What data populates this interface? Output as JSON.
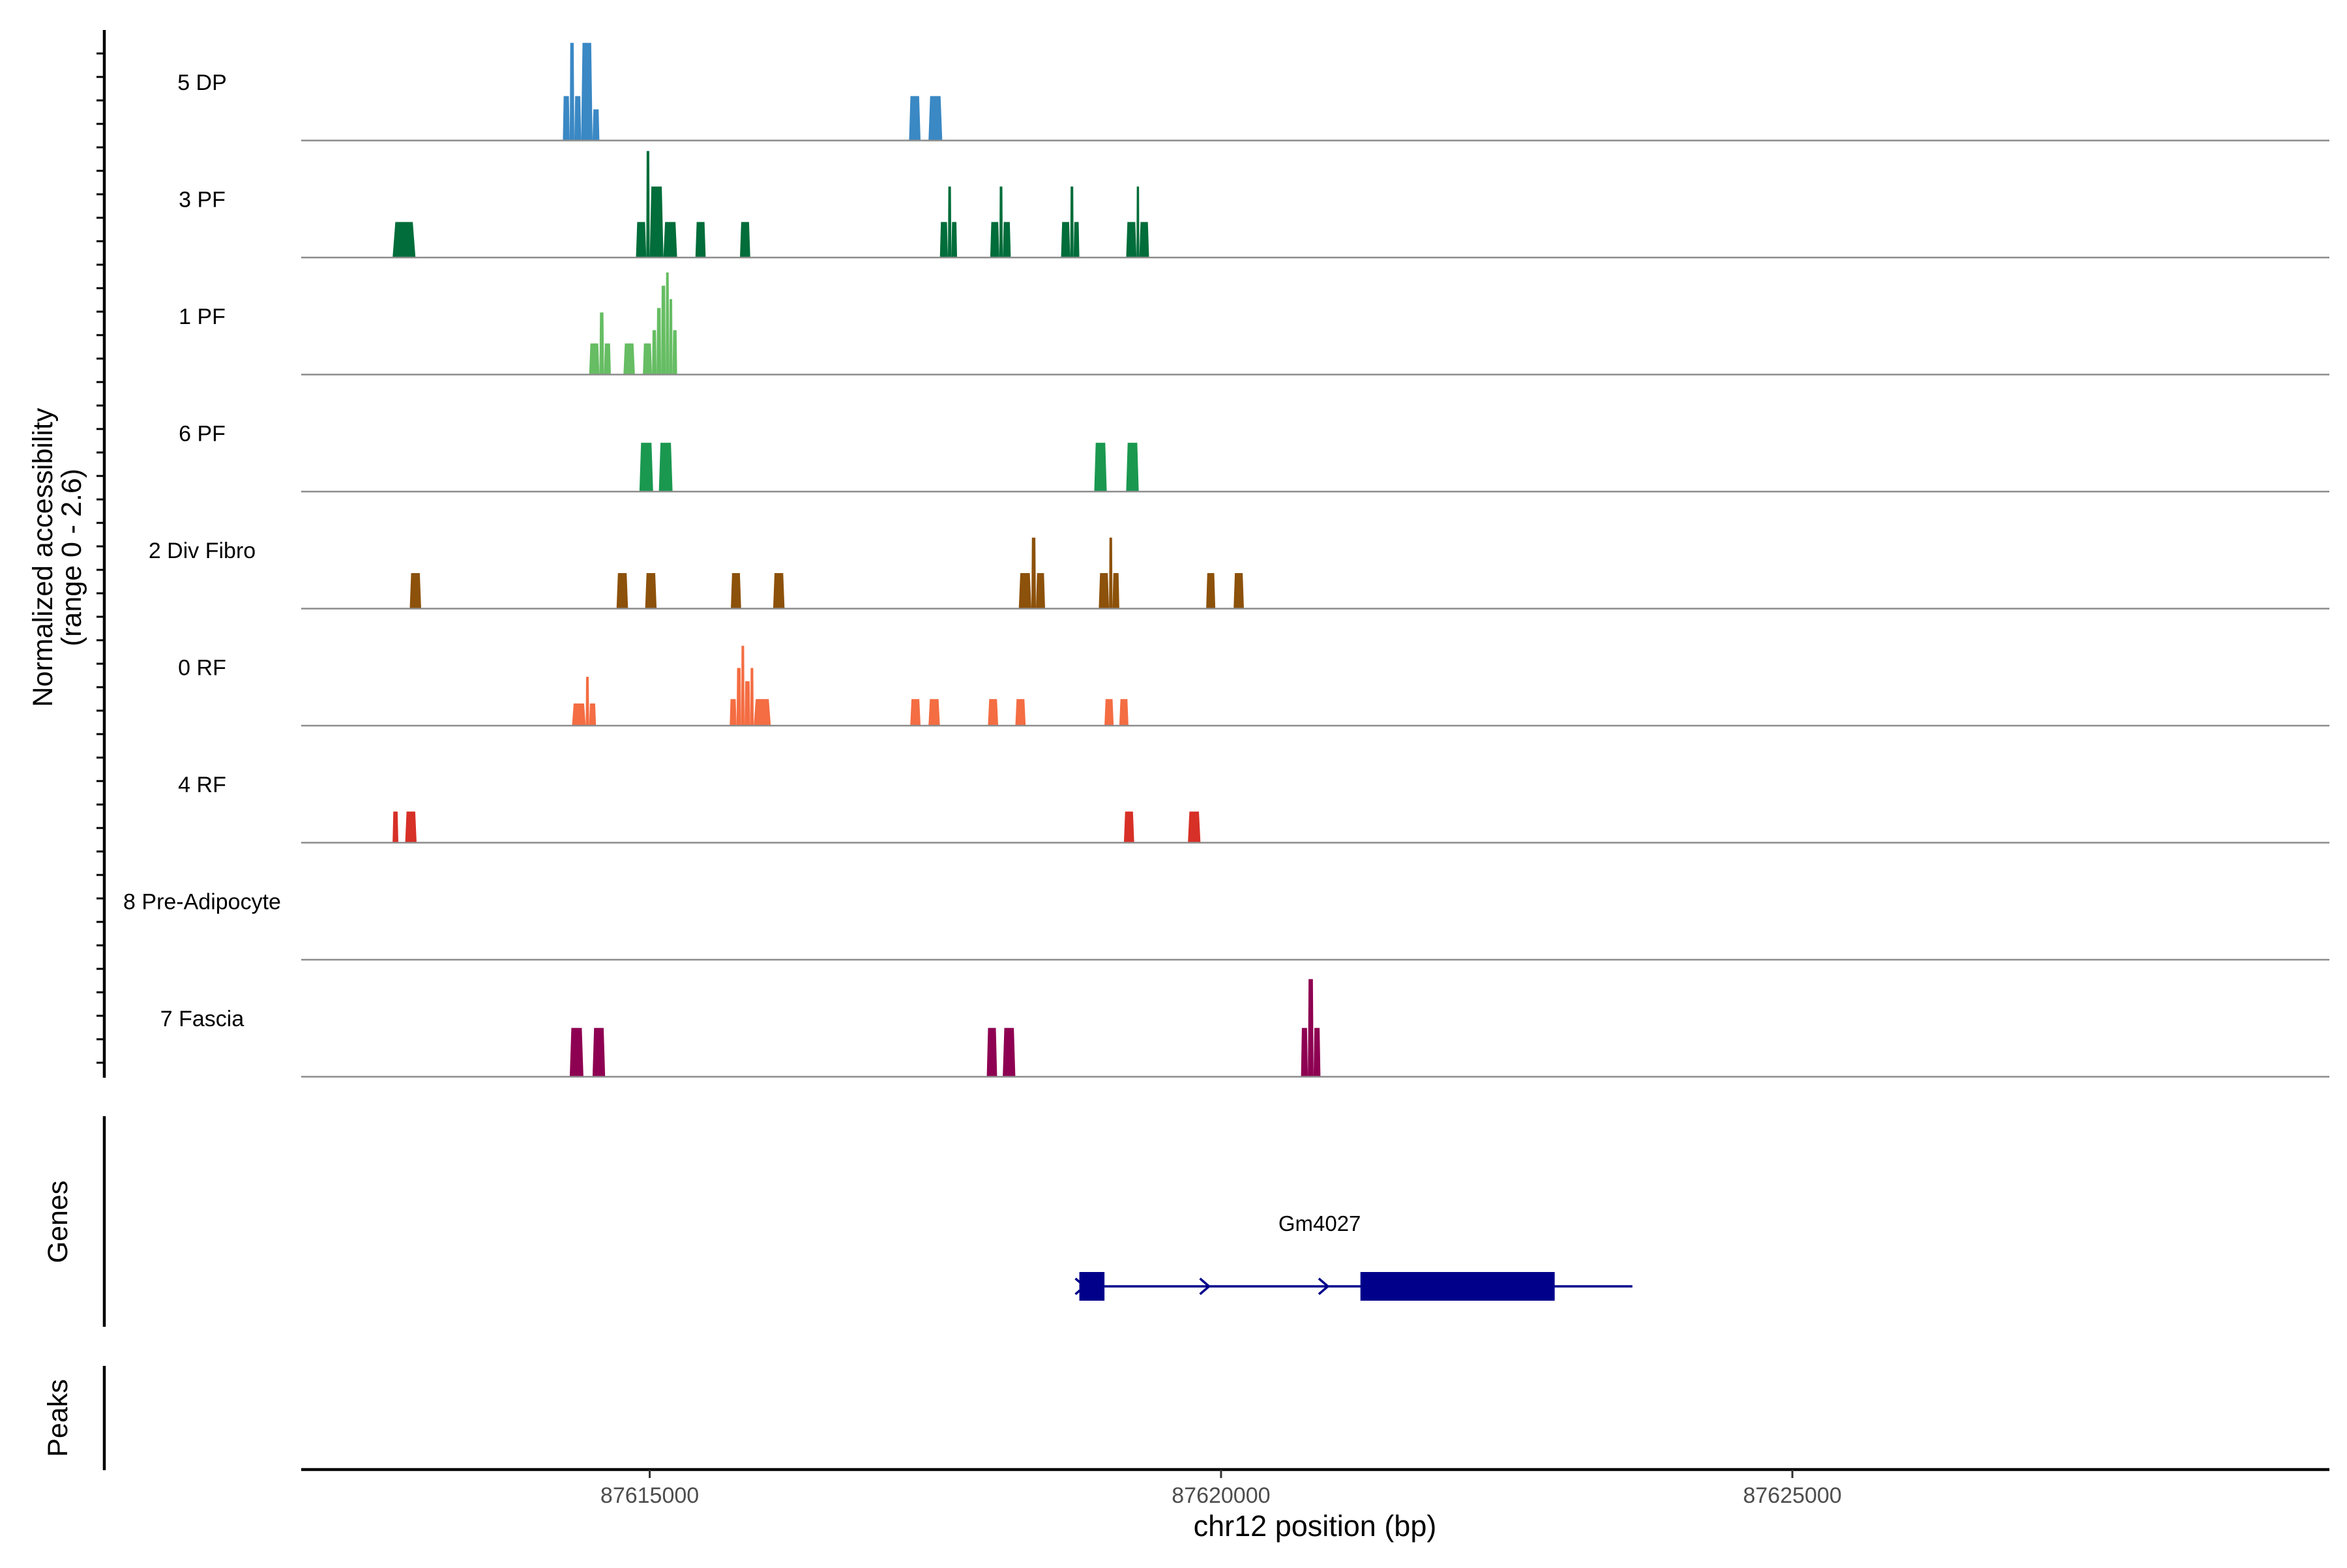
{
  "chart_data": {
    "type": "area",
    "title": "",
    "region": "chr12",
    "xlabel": "chr12 position (bp)",
    "ylabel": "Normalized accessibility",
    "ylabel_range": "(range 0 - 2.6)",
    "y_range": [
      0,
      2.6
    ],
    "xlim": [
      87611950,
      87629700
    ],
    "x_ticks": [
      87615000,
      87620000,
      87625000
    ],
    "x_tick_labels": [
      "87615000",
      "87620000",
      "87625000"
    ],
    "panel_labels": {
      "genes": "Genes",
      "peaks": "Peaks"
    },
    "tracks": [
      {
        "name": "5 DP",
        "color": "#3A88C4",
        "peaks": [
          {
            "start": 87614240,
            "end": 87614300,
            "value": 1.0
          },
          {
            "start": 87614300,
            "end": 87614340,
            "value": 2.2
          },
          {
            "start": 87614340,
            "end": 87614400,
            "value": 1.0
          },
          {
            "start": 87614400,
            "end": 87614500,
            "value": 2.2
          },
          {
            "start": 87614500,
            "end": 87614560,
            "value": 0.7
          },
          {
            "start": 87617270,
            "end": 87617370,
            "value": 1.0
          },
          {
            "start": 87617440,
            "end": 87617560,
            "value": 1.0
          }
        ]
      },
      {
        "name": "3 PF",
        "color": "#006D3A",
        "peaks": [
          {
            "start": 87612750,
            "end": 87612950,
            "value": 0.8
          },
          {
            "start": 87614880,
            "end": 87614970,
            "value": 0.8
          },
          {
            "start": 87614970,
            "end": 87615000,
            "value": 2.4
          },
          {
            "start": 87615000,
            "end": 87615120,
            "value": 1.6
          },
          {
            "start": 87615120,
            "end": 87615240,
            "value": 0.8
          },
          {
            "start": 87615400,
            "end": 87615490,
            "value": 0.8
          },
          {
            "start": 87615790,
            "end": 87615880,
            "value": 0.8
          },
          {
            "start": 87617540,
            "end": 87617610,
            "value": 0.8
          },
          {
            "start": 87617610,
            "end": 87617640,
            "value": 1.6
          },
          {
            "start": 87617640,
            "end": 87617690,
            "value": 0.8
          },
          {
            "start": 87617980,
            "end": 87618060,
            "value": 0.8
          },
          {
            "start": 87618060,
            "end": 87618090,
            "value": 1.6
          },
          {
            "start": 87618090,
            "end": 87618160,
            "value": 0.8
          },
          {
            "start": 87618600,
            "end": 87618680,
            "value": 0.8
          },
          {
            "start": 87618680,
            "end": 87618710,
            "value": 1.6
          },
          {
            "start": 87618710,
            "end": 87618760,
            "value": 0.8
          },
          {
            "start": 87619170,
            "end": 87619260,
            "value": 0.8
          },
          {
            "start": 87619260,
            "end": 87619285,
            "value": 1.6
          },
          {
            "start": 87619285,
            "end": 87619370,
            "value": 0.8
          }
        ]
      },
      {
        "name": "1 PF",
        "color": "#66BD63",
        "peaks": [
          {
            "start": 87614470,
            "end": 87614560,
            "value": 0.7
          },
          {
            "start": 87614560,
            "end": 87614600,
            "value": 1.4
          },
          {
            "start": 87614600,
            "end": 87614660,
            "value": 0.7
          },
          {
            "start": 87614770,
            "end": 87614870,
            "value": 0.7
          },
          {
            "start": 87614940,
            "end": 87615020,
            "value": 0.7
          },
          {
            "start": 87615020,
            "end": 87615060,
            "value": 1.0
          },
          {
            "start": 87615060,
            "end": 87615100,
            "value": 1.5
          },
          {
            "start": 87615100,
            "end": 87615140,
            "value": 2.0
          },
          {
            "start": 87615140,
            "end": 87615170,
            "value": 2.3
          },
          {
            "start": 87615170,
            "end": 87615200,
            "value": 1.7
          },
          {
            "start": 87615200,
            "end": 87615240,
            "value": 1.0
          }
        ]
      },
      {
        "name": "6 PF",
        "color": "#1A9850",
        "peaks": [
          {
            "start": 87614910,
            "end": 87615030,
            "value": 1.1
          },
          {
            "start": 87615080,
            "end": 87615200,
            "value": 1.1
          },
          {
            "start": 87618890,
            "end": 87619000,
            "value": 1.1
          },
          {
            "start": 87619170,
            "end": 87619280,
            "value": 1.1
          }
        ]
      },
      {
        "name": "2 Div Fibro",
        "color": "#8C510A",
        "peaks": [
          {
            "start": 87612900,
            "end": 87613000,
            "value": 0.8
          },
          {
            "start": 87614710,
            "end": 87614810,
            "value": 0.8
          },
          {
            "start": 87614960,
            "end": 87615060,
            "value": 0.8
          },
          {
            "start": 87615710,
            "end": 87615800,
            "value": 0.8
          },
          {
            "start": 87616080,
            "end": 87616180,
            "value": 0.8
          },
          {
            "start": 87618230,
            "end": 87618340,
            "value": 0.8
          },
          {
            "start": 87618340,
            "end": 87618380,
            "value": 1.6
          },
          {
            "start": 87618380,
            "end": 87618460,
            "value": 0.8
          },
          {
            "start": 87618930,
            "end": 87619020,
            "value": 0.8
          },
          {
            "start": 87619020,
            "end": 87619050,
            "value": 1.6
          },
          {
            "start": 87619050,
            "end": 87619110,
            "value": 0.8
          },
          {
            "start": 87619870,
            "end": 87619950,
            "value": 0.8
          },
          {
            "start": 87620110,
            "end": 87620200,
            "value": 0.8
          }
        ]
      },
      {
        "name": "0 RF",
        "color": "#F46D43",
        "peaks": [
          {
            "start": 87614320,
            "end": 87614440,
            "value": 0.5
          },
          {
            "start": 87614440,
            "end": 87614470,
            "value": 1.1
          },
          {
            "start": 87614470,
            "end": 87614530,
            "value": 0.5
          },
          {
            "start": 87615700,
            "end": 87615760,
            "value": 0.6
          },
          {
            "start": 87615760,
            "end": 87615800,
            "value": 1.3
          },
          {
            "start": 87615800,
            "end": 87615830,
            "value": 1.8
          },
          {
            "start": 87615830,
            "end": 87615880,
            "value": 1.0
          },
          {
            "start": 87615880,
            "end": 87615910,
            "value": 1.3
          },
          {
            "start": 87615910,
            "end": 87616060,
            "value": 0.6
          },
          {
            "start": 87617280,
            "end": 87617370,
            "value": 0.6
          },
          {
            "start": 87617440,
            "end": 87617540,
            "value": 0.6
          },
          {
            "start": 87617960,
            "end": 87618050,
            "value": 0.6
          },
          {
            "start": 87618200,
            "end": 87618290,
            "value": 0.6
          },
          {
            "start": 87618980,
            "end": 87619060,
            "value": 0.6
          },
          {
            "start": 87619110,
            "end": 87619190,
            "value": 0.6
          }
        ]
      },
      {
        "name": "4 RF",
        "color": "#D73027",
        "peaks": [
          {
            "start": 87612750,
            "end": 87612800,
            "value": 0.7
          },
          {
            "start": 87612860,
            "end": 87612960,
            "value": 0.7
          },
          {
            "start": 87619150,
            "end": 87619240,
            "value": 0.7
          },
          {
            "start": 87619710,
            "end": 87619820,
            "value": 0.7
          }
        ]
      },
      {
        "name": "8 Pre-Adipocyte",
        "color": "#4D4D4D",
        "peaks": []
      },
      {
        "name": "7 Fascia",
        "color": "#8E0152",
        "peaks": [
          {
            "start": 87614300,
            "end": 87614420,
            "value": 1.1
          },
          {
            "start": 87614500,
            "end": 87614610,
            "value": 1.1
          },
          {
            "start": 87617950,
            "end": 87618040,
            "value": 1.1
          },
          {
            "start": 87618090,
            "end": 87618200,
            "value": 1.1
          },
          {
            "start": 87620700,
            "end": 87620760,
            "value": 1.1
          },
          {
            "start": 87620760,
            "end": 87620810,
            "value": 2.2
          },
          {
            "start": 87620810,
            "end": 87620870,
            "value": 1.1
          }
        ]
      }
    ],
    "gene": {
      "name": "Gm4027",
      "color": "#00008B",
      "strand": "+",
      "start": 87618760,
      "end": 87623600,
      "exons": [
        {
          "start": 87618760,
          "end": 87618980
        },
        {
          "start": 87621220,
          "end": 87622920
        }
      ],
      "arrows": [
        87618760,
        87619850,
        87620890
      ]
    }
  }
}
